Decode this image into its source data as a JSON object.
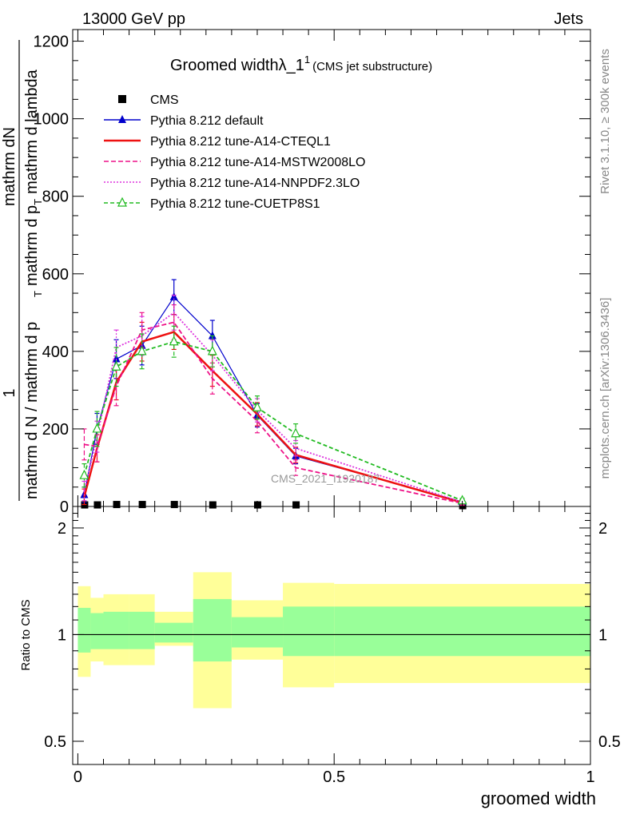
{
  "header": {
    "left": "13000 GeV pp",
    "right": "Jets"
  },
  "side": {
    "rivet": "Rivet 3.1.10, ≥ 300k events",
    "mcplots": "mcplots.cern.ch [arXiv:1306.3436]"
  },
  "watermark": "CMS_2021_I1920187",
  "chart_data": [
    {
      "type": "line",
      "title_main": "Groomed width",
      "title_symbol": "λ_1",
      "title_sup": "1",
      "title_sub": "(CMS jet substructure)",
      "ylabel_frac_top": "1",
      "ylabel_frac_bottom": "mathrm d N / mathrm d p_T mathrm d p_T mathrm d lambda",
      "ylabel_top": "mathrm d",
      "ylabel_top_N": "N",
      "ylabel_mid": "mathrm d p",
      "ylabel_sub_T": "T",
      "ylabel_rest": "mathrm d lambda",
      "ylabel_mathrm_d_pT": "mathrm d p",
      "ylabel_mathrm_d_lambda": "mathrm d lambda",
      "ylabel_left": "mathrm d N / mathrm d p",
      "ylim": [
        0,
        1230
      ],
      "xlim": [
        -0.01,
        1.0
      ],
      "yticks": [
        0,
        200,
        400,
        600,
        800,
        1000,
        1200
      ],
      "ytick_labels": [
        "0",
        "200",
        "400",
        "600",
        "800",
        "1000",
        "1200"
      ],
      "series": [
        {
          "name": "CMS",
          "color": "#000000",
          "marker": "square",
          "x": [
            0.0125,
            0.0375,
            0.075,
            0.125,
            0.1875,
            0.2625,
            0.35,
            0.425,
            0.75
          ],
          "values": [
            3,
            3,
            4,
            4,
            4,
            3,
            3,
            3,
            1
          ]
        },
        {
          "name": "Pythia 8.212 default",
          "color": "#0000cc",
          "marker": "triangle",
          "dash": "",
          "x": [
            0.0125,
            0.0375,
            0.075,
            0.125,
            0.1875,
            0.2625,
            0.35,
            0.425,
            0.75
          ],
          "values": [
            30,
            200,
            380,
            415,
            540,
            440,
            235,
            130,
            12
          ],
          "err": [
            20,
            40,
            50,
            50,
            45,
            40,
            30,
            20,
            5
          ]
        },
        {
          "name": "Pythia 8.212 tune-A14-CTEQL1",
          "color": "#ee1111",
          "marker": "none",
          "dash": "",
          "x": [
            0.0125,
            0.0375,
            0.075,
            0.125,
            0.1875,
            0.2625,
            0.35,
            0.425,
            0.75
          ],
          "values": [
            25,
            150,
            320,
            425,
            450,
            350,
            238,
            133,
            10
          ],
          "err": [
            20,
            35,
            45,
            50,
            45,
            40,
            30,
            20,
            5
          ]
        },
        {
          "name": "Pythia 8.212 tune-A14-MSTW2008LO",
          "color": "#ee1188",
          "marker": "none",
          "dash": "6,3",
          "x": [
            0.0125,
            0.0375,
            0.075,
            0.125,
            0.1875,
            0.2625,
            0.35,
            0.425,
            0.75
          ],
          "values": [
            160,
            155,
            310,
            455,
            475,
            330,
            220,
            100,
            8
          ],
          "err": [
            40,
            40,
            50,
            45,
            45,
            40,
            30,
            20,
            5
          ]
        },
        {
          "name": "Pythia 8.212 tune-A14-NNPDF2.3LO",
          "color": "#dd33dd",
          "marker": "none",
          "dash": "2,2",
          "x": [
            0.0125,
            0.0375,
            0.075,
            0.125,
            0.1875,
            0.2625,
            0.35,
            0.425,
            0.75
          ],
          "values": [
            40,
            180,
            410,
            440,
            500,
            390,
            248,
            150,
            11
          ],
          "err": [
            25,
            40,
            45,
            50,
            45,
            40,
            30,
            20,
            5
          ]
        },
        {
          "name": "Pythia 8.212 tune-CUETP8S1",
          "color": "#22bb22",
          "marker": "triangle-open",
          "dash": "5,3",
          "x": [
            0.0125,
            0.0375,
            0.075,
            0.125,
            0.1875,
            0.2625,
            0.35,
            0.425,
            0.75
          ],
          "values": [
            80,
            200,
            360,
            400,
            425,
            400,
            255,
            188,
            15
          ],
          "err": [
            30,
            45,
            50,
            45,
            40,
            40,
            30,
            25,
            6
          ]
        }
      ]
    },
    {
      "type": "area",
      "ylabel": "Ratio to CMS",
      "xlabel": "groomed width",
      "ylim": [
        0.43,
        2.3
      ],
      "xlim": [
        -0.01,
        1.0
      ],
      "yticks": [
        0.5,
        1,
        2
      ],
      "ytick_labels": [
        "0.5",
        "1",
        "2"
      ],
      "xticks": [
        0,
        0.5,
        1
      ],
      "xtick_labels": [
        "0",
        "0.5",
        "1"
      ],
      "bins": [
        {
          "x0": 0.0,
          "x1": 0.025,
          "yellow": [
            0.76,
            1.37
          ],
          "green": [
            0.89,
            1.19
          ]
        },
        {
          "x0": 0.025,
          "x1": 0.05,
          "yellow": [
            0.84,
            1.27
          ],
          "green": [
            0.91,
            1.15
          ]
        },
        {
          "x0": 0.05,
          "x1": 0.1,
          "yellow": [
            0.82,
            1.3
          ],
          "green": [
            0.91,
            1.16
          ]
        },
        {
          "x0": 0.1,
          "x1": 0.15,
          "yellow": [
            0.82,
            1.3
          ],
          "green": [
            0.91,
            1.16
          ]
        },
        {
          "x0": 0.15,
          "x1": 0.225,
          "yellow": [
            0.93,
            1.16
          ],
          "green": [
            0.95,
            1.08
          ]
        },
        {
          "x0": 0.225,
          "x1": 0.3,
          "yellow": [
            0.62,
            1.5
          ],
          "green": [
            0.84,
            1.26
          ]
        },
        {
          "x0": 0.3,
          "x1": 0.4,
          "yellow": [
            0.85,
            1.25
          ],
          "green": [
            0.92,
            1.12
          ]
        },
        {
          "x0": 0.4,
          "x1": 0.5,
          "yellow": [
            0.71,
            1.4
          ],
          "green": [
            0.87,
            1.2
          ]
        },
        {
          "x0": 0.5,
          "x1": 1.0,
          "yellow": [
            0.73,
            1.39
          ],
          "green": [
            0.87,
            1.2
          ]
        }
      ],
      "reference": 1
    }
  ]
}
